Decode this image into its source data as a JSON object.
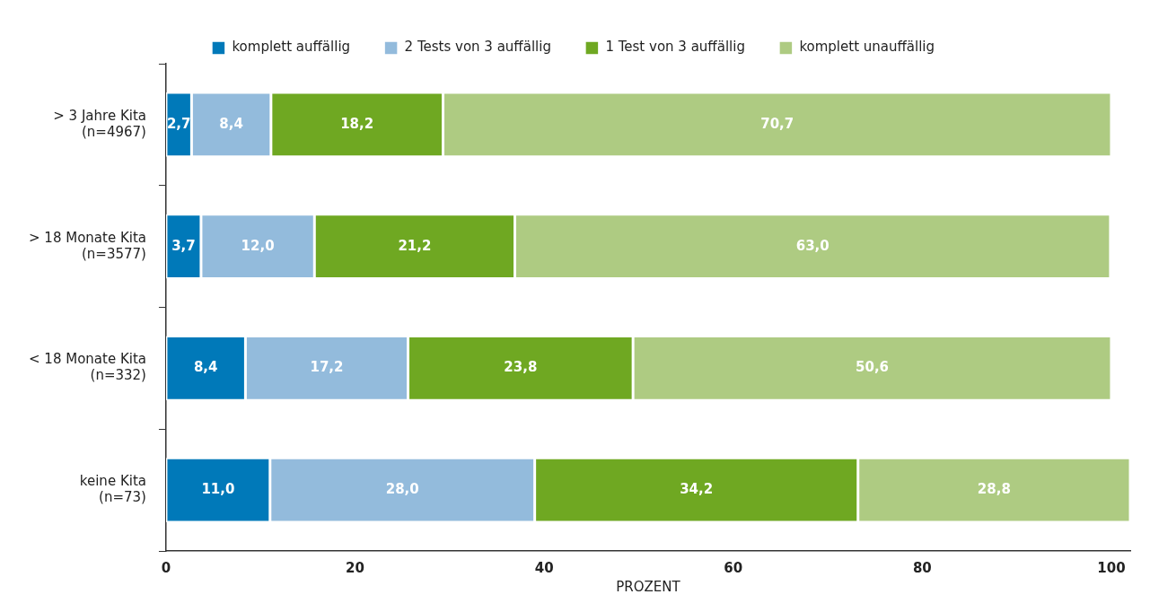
{
  "chart_data": {
    "type": "bar",
    "orientation": "horizontal",
    "stacked": true,
    "xlabel": "PROZENT",
    "categories": [
      "> 3 Jahre Kita\n(n=4967)",
      "> 18 Monate Kita\n(n=3577)",
      "< 18 Monate Kita\n(n=332)",
      "keine Kita\n(n=73)"
    ],
    "series": [
      {
        "name": "komplett auffällig",
        "color": "#0079b9",
        "values": [
          2.7,
          3.7,
          8.4,
          11.0
        ],
        "value_labels": [
          "2,7",
          "3,7",
          "8,4",
          "11,0"
        ]
      },
      {
        "name": "2 Tests von 3 auffällig",
        "color": "#93bbdc",
        "values": [
          8.4,
          12.0,
          17.2,
          28.0
        ],
        "value_labels": [
          "8,4",
          "12,0",
          "17,2",
          "28,0"
        ]
      },
      {
        "name": "1 Test von 3 auffällig",
        "color": "#6fa822",
        "values": [
          18.2,
          21.2,
          23.8,
          34.2
        ],
        "value_labels": [
          "18,2",
          "21,2",
          "23,8",
          "34,2"
        ]
      },
      {
        "name": "komplett unauffällig",
        "color": "#aecb82",
        "values": [
          70.7,
          63.0,
          50.6,
          28.8
        ],
        "value_labels": [
          "70,7",
          "63,0",
          "50,6",
          "28,8"
        ]
      }
    ],
    "xlim": [
      0,
      102
    ],
    "xticks": [
      0,
      20,
      40,
      60,
      80,
      100
    ],
    "grid": false,
    "legend": "top"
  }
}
